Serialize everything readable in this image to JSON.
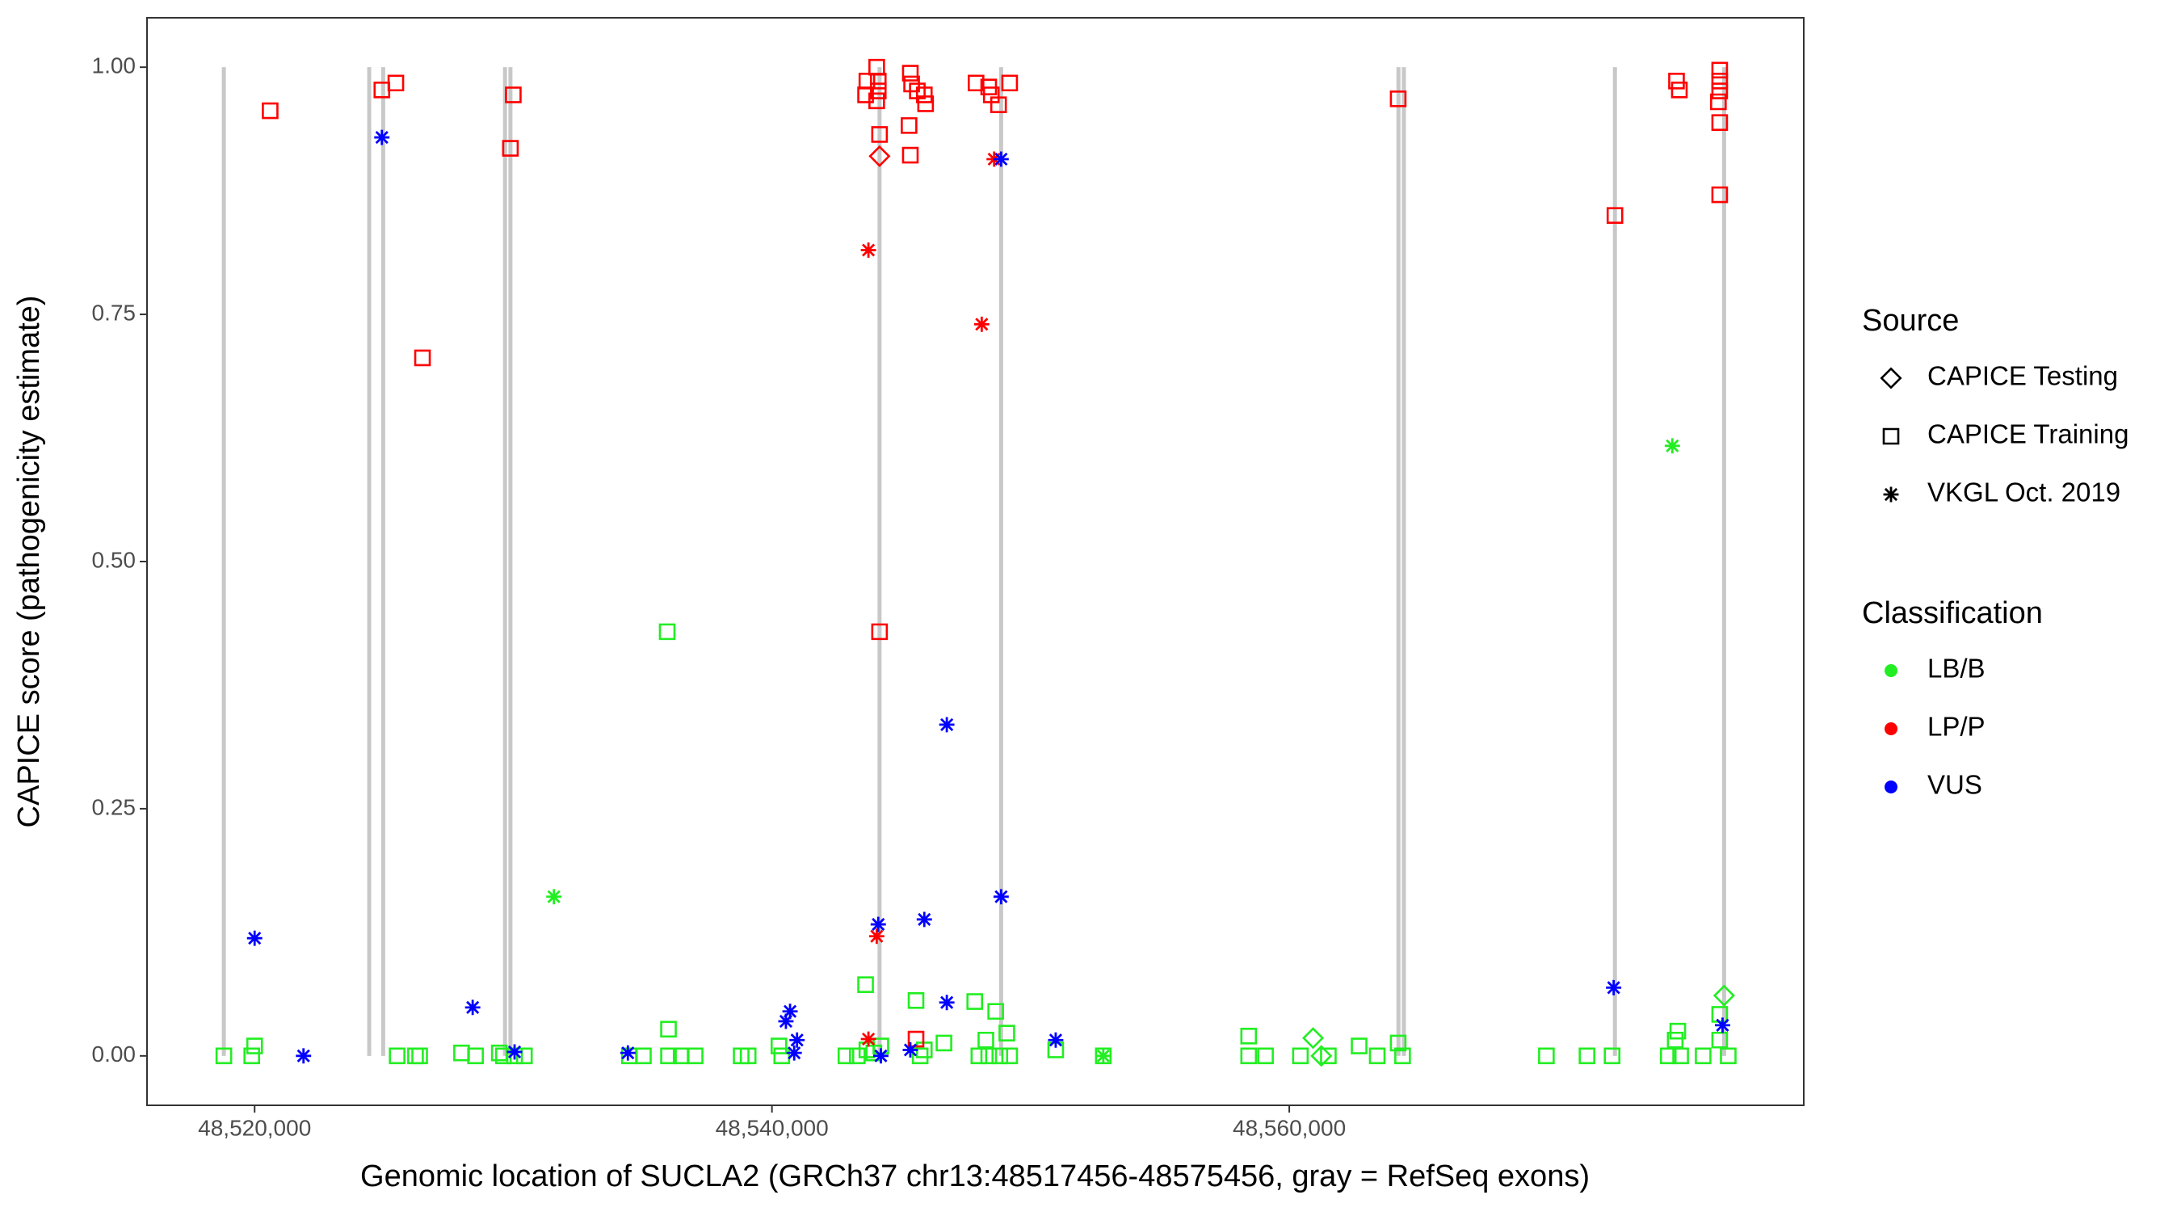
{
  "chart_data": {
    "type": "scatter",
    "x_label": "Genomic location of SUCLA2 (GRCh37 chr13:48517456-48575456, gray = RefSeq exons)",
    "y_label": "CAPICE score (pathogenicity estimate)",
    "xlim": [
      48515840,
      48579890
    ],
    "ylim": [
      -0.05,
      1.05
    ],
    "xticks": [
      {
        "value": 48520000,
        "label": "48,520,000"
      },
      {
        "value": 48540000,
        "label": "48,540,000"
      },
      {
        "value": 48560000,
        "label": "48,560,000"
      }
    ],
    "yticks": [
      {
        "value": 0,
        "label": "0.00"
      },
      {
        "value": 0.25,
        "label": "0.25"
      },
      {
        "value": 0.5,
        "label": "0.50"
      },
      {
        "value": 0.75,
        "label": "0.75"
      },
      {
        "value": 1,
        "label": "1.00"
      }
    ],
    "exon_color": "#c8c8c8",
    "exon_span": [
      0,
      1
    ],
    "exons": [
      48518810,
      48524430,
      48524970,
      48529680,
      48529890,
      48544160,
      48548860,
      48564220,
      48564430,
      48572590,
      48576810
    ],
    "shape_legend": {
      "title": "Source",
      "items": [
        {
          "name": "CAPICE Testing",
          "shape": "diamond"
        },
        {
          "name": "CAPICE Training",
          "shape": "square"
        },
        {
          "name": "VKGL Oct. 2019",
          "shape": "asterisk"
        }
      ]
    },
    "color_legend": {
      "title": "Classification",
      "items": [
        {
          "name": "LB/B",
          "color": "#22ee22"
        },
        {
          "name": "LP/P",
          "color": "#ff0000"
        },
        {
          "name": "VUS",
          "color": "#0000ff"
        }
      ]
    },
    "series": [
      {
        "shape": "square",
        "color": "#22ee22",
        "x": [
          48518810,
          48519890,
          48520000,
          48525510,
          48526220,
          48526380,
          48528000,
          48528540,
          48529460,
          48529620,
          48530050,
          48530430,
          48534490,
          48535030,
          48535950,
          48536000,
          48536000,
          48536490,
          48537030,
          48538810,
          48539080,
          48540270,
          48540380,
          48542860,
          48543300,
          48543620,
          48543670,
          48543940,
          48544210,
          48545570,
          48545730,
          48545890,
          48546650,
          48547840,
          48548000,
          48548270,
          48548380,
          48548650,
          48548810,
          48549080,
          48549190,
          48550970,
          48552810,
          48558430,
          48558430,
          48559080,
          48560430,
          48561510,
          48562700,
          48563400,
          48564210,
          48564380,
          48569940,
          48571510,
          48572480,
          48574650,
          48574920,
          48575020,
          48575130,
          48576000,
          48576640,
          48576640,
          48576970
        ],
        "y": [
          0,
          0,
          0.01,
          0,
          0,
          0,
          0.003,
          0,
          0.003,
          0,
          0,
          0,
          0,
          0,
          0.429,
          0.027,
          0,
          0,
          0,
          0,
          0,
          0.01,
          0,
          0,
          0,
          0.072,
          0.006,
          0.003,
          0.01,
          0.056,
          0,
          0.006,
          0.013,
          0.055,
          0,
          0.016,
          0,
          0.045,
          0,
          0.023,
          0,
          0.006,
          0,
          0.02,
          0,
          0,
          0,
          0,
          0.01,
          0,
          0.013,
          0,
          0,
          0,
          0,
          0,
          0.016,
          0.025,
          0,
          0,
          0.016,
          0.042,
          0
        ]
      },
      {
        "shape": "diamond",
        "color": "#22ee22",
        "x": [
          48560920,
          48561240,
          48576810
        ],
        "y": [
          0.018,
          0,
          0.061
        ]
      },
      {
        "shape": "asterisk",
        "color": "#22ee22",
        "x": [
          48531570,
          48574810,
          48552810
        ],
        "y": [
          0.161,
          0.617,
          0
        ]
      },
      {
        "shape": "square",
        "color": "#ff0000",
        "x": [
          48520600,
          48524920,
          48525460,
          48526490,
          48529890,
          48530000,
          48543670,
          48543620,
          48544050,
          48544110,
          48544110,
          48544050,
          48544160,
          48545350,
          48545400,
          48545620,
          48545890,
          48545940,
          48545300,
          48545350,
          48544160,
          48547890,
          48548380,
          48548480,
          48548760,
          48549190,
          48545570,
          48564210,
          48572590,
          48574970,
          48575080,
          48576640,
          48576640,
          48576640,
          48576590,
          48576640,
          48576640
        ],
        "y": [
          0.956,
          0.977,
          0.984,
          0.706,
          0.918,
          0.972,
          0.986,
          0.972,
          1.0,
          0.986,
          0.976,
          0.966,
          0.932,
          0.994,
          0.983,
          0.976,
          0.972,
          0.963,
          0.941,
          0.911,
          0.429,
          0.984,
          0.98,
          0.972,
          0.962,
          0.984,
          0.017,
          0.968,
          0.85,
          0.986,
          0.977,
          0.997,
          0.986,
          0.976,
          0.965,
          0.944,
          0.871
        ]
      },
      {
        "shape": "diamond",
        "color": "#ff0000",
        "x": [
          48544160
        ],
        "y": [
          0.91
        ]
      },
      {
        "shape": "asterisk",
        "color": "#ff0000",
        "x": [
          48543730,
          48548110,
          48548590,
          48544050,
          48543730
        ],
        "y": [
          0.815,
          0.74,
          0.907,
          0.121,
          0.017
        ]
      },
      {
        "shape": "asterisk",
        "color": "#0000ff",
        "x": [
          48524920,
          48520000,
          48521890,
          48528430,
          48530050,
          48534430,
          48540540,
          48540700,
          48540970,
          48540860,
          48544110,
          48544210,
          48545890,
          48545350,
          48546760,
          48546760,
          48548860,
          48548860,
          48550970,
          48572540,
          48576750
        ],
        "y": [
          0.929,
          0.119,
          0,
          0.049,
          0.004,
          0.003,
          0.035,
          0.045,
          0.016,
          0.003,
          0.133,
          0,
          0.138,
          0.006,
          0.335,
          0.054,
          0.907,
          0.161,
          0.016,
          0.069,
          0.031
        ]
      }
    ]
  }
}
